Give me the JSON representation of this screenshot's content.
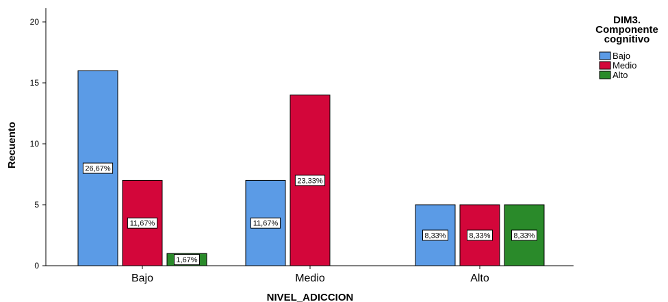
{
  "chart_data": {
    "type": "bar",
    "title": "",
    "xlabel": "NIVEL_ADICCION",
    "ylabel": "Recuento",
    "ylim": [
      0,
      20
    ],
    "yticks": [
      0,
      5,
      10,
      15,
      20
    ],
    "grid": false,
    "legend": {
      "title_lines": [
        "DIM3.",
        "Componente",
        "cognitivo"
      ],
      "placement": "top-right"
    },
    "categories": [
      "Bajo",
      "Medio",
      "Alto"
    ],
    "series": [
      {
        "name": "Bajo",
        "color": "#5b9be6",
        "values": [
          16,
          7,
          5
        ],
        "labels": [
          "26,67%",
          "11,67%",
          "8,33%"
        ]
      },
      {
        "name": "Medio",
        "color": "#d3063a",
        "values": [
          7,
          14,
          5
        ],
        "labels": [
          "11,67%",
          "23,33%",
          "8,33%"
        ]
      },
      {
        "name": "Alto",
        "color": "#2a8a2a",
        "values": [
          1,
          0,
          5
        ],
        "labels": [
          "1,67%",
          "",
          "8,33%"
        ]
      }
    ]
  }
}
